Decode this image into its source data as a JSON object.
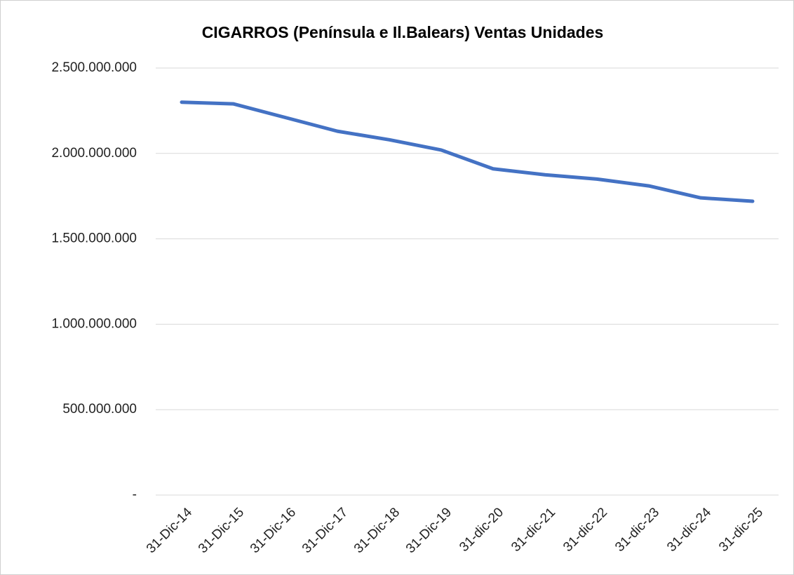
{
  "chart_data": {
    "type": "line",
    "title": "CIGARROS (Península e Il.Balears) Ventas Unidades",
    "categories": [
      "31-Dic-14",
      "31-Dic-15",
      "31-Dic-16",
      "31-Dic-17",
      "31-Dic-18",
      "31-Dic-19",
      "31-dic-20",
      "31-dic-21",
      "31-dic-22",
      "31-dic-23",
      "31-dic-24",
      "31-dic-25"
    ],
    "series": [
      {
        "name": "Ventas Unidades",
        "color": "#4472c4",
        "values": [
          2300000000,
          2290000000,
          2210000000,
          2130000000,
          2080000000,
          2020000000,
          1910000000,
          1875000000,
          1850000000,
          1810000000,
          1740000000,
          1720000000
        ]
      }
    ],
    "ylim": [
      0,
      2500000000
    ],
    "yticks": [
      {
        "value": 0,
        "label": "-"
      },
      {
        "value": 500000000,
        "label": "500.000.000"
      },
      {
        "value": 1000000000,
        "label": "1.000.000.000"
      },
      {
        "value": 1500000000,
        "label": "1.500.000.000"
      },
      {
        "value": 2000000000,
        "label": "2.000.000.000"
      },
      {
        "value": 2500000000,
        "label": "2.500.000.000"
      }
    ],
    "grid": true
  }
}
